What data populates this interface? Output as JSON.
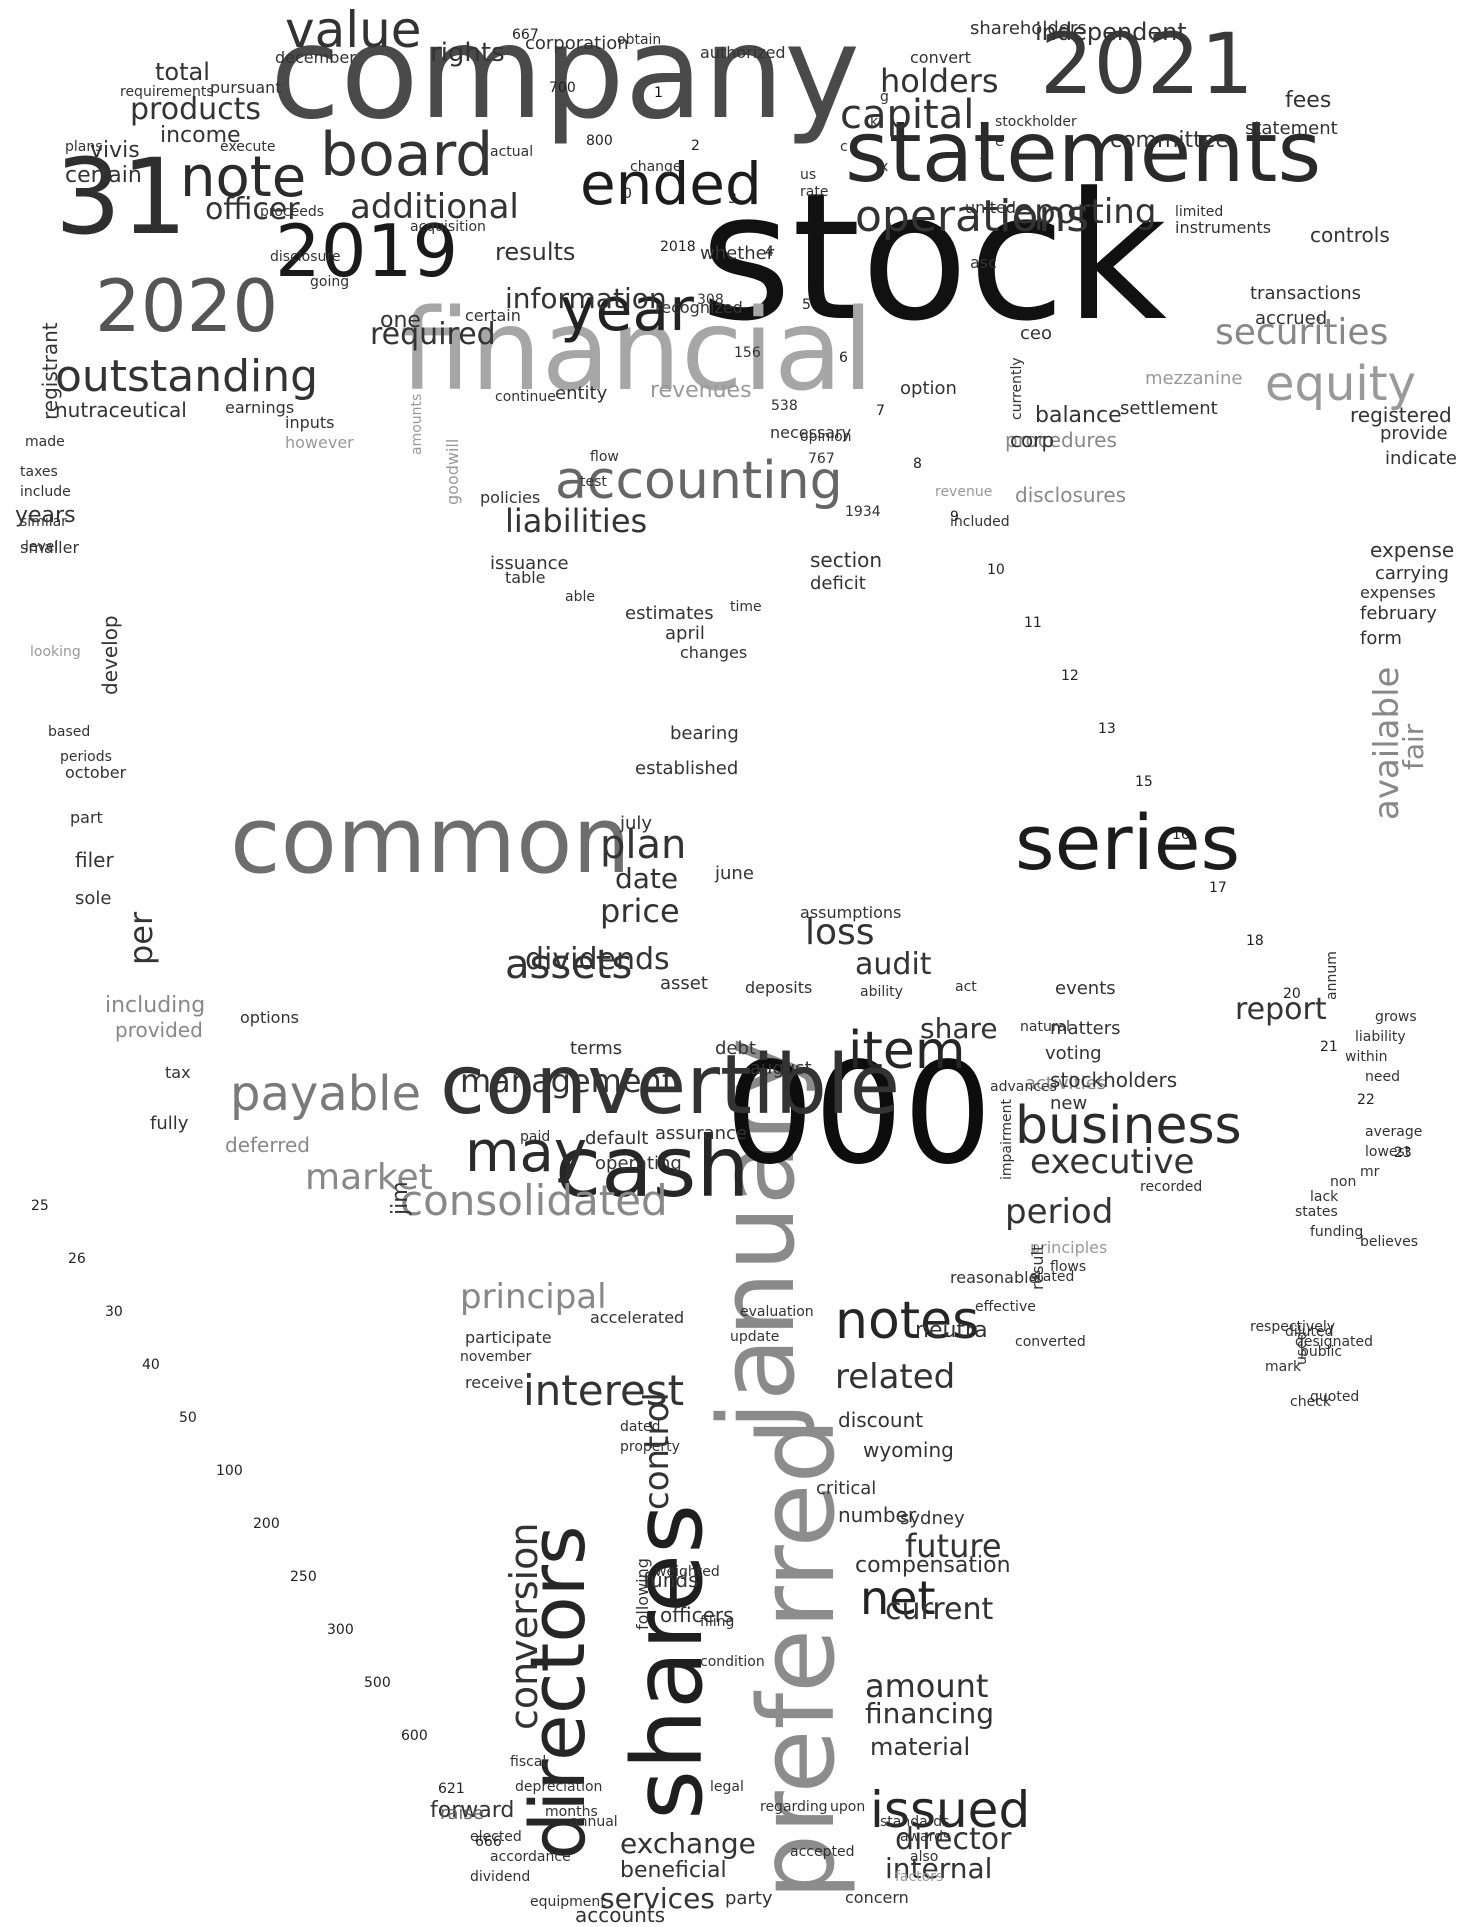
{
  "words": [
    {
      "text": "stock",
      "tone": "#111111"
    },
    {
      "text": "company",
      "tone": "#4a4a4a"
    },
    {
      "text": "statements",
      "tone": "#2a2a2a"
    },
    {
      "text": "2021",
      "tone": "#3a3a3a"
    },
    {
      "text": "financial",
      "tone": "#a6a6a6"
    },
    {
      "text": "31",
      "tone": "#2f2f2f"
    },
    {
      "text": "2019",
      "tone": "#1a1a1a"
    },
    {
      "text": "2020",
      "tone": "#555555"
    },
    {
      "text": "january",
      "tone": "#8a8a8a"
    },
    {
      "text": "preferred",
      "tone": "#8c8c8c"
    },
    {
      "text": "shares",
      "tone": "#1f1f1f"
    },
    {
      "text": "000",
      "tone": "#0d0d0d"
    },
    {
      "text": "common",
      "tone": "#6e6e6e"
    },
    {
      "text": "series",
      "tone": "#1c1c1c"
    },
    {
      "text": "convertible",
      "tone": "#333333"
    },
    {
      "text": "cash",
      "tone": "#262626"
    },
    {
      "text": "directors",
      "tone": "#262626"
    },
    {
      "text": "note",
      "tone": "#2b2b2b"
    },
    {
      "text": "board",
      "tone": "#333333"
    },
    {
      "text": "ended",
      "tone": "#1c1c1c"
    },
    {
      "text": "value",
      "tone": "#333333"
    },
    {
      "text": "year",
      "tone": "#222222"
    },
    {
      "text": "accounting",
      "tone": "#666666"
    },
    {
      "text": "equity",
      "tone": "#999999"
    },
    {
      "text": "operations",
      "tone": "#333333"
    },
    {
      "text": "outstanding",
      "tone": "#333333"
    },
    {
      "text": "item",
      "tone": "#262626"
    },
    {
      "text": "notes",
      "tone": "#262626"
    },
    {
      "text": "issued",
      "tone": "#262626"
    },
    {
      "text": "business",
      "tone": "#2b2b2b"
    },
    {
      "text": "may",
      "tone": "#2b2b2b"
    },
    {
      "text": "payable",
      "tone": "#7a7a7a"
    },
    {
      "text": "consolidated",
      "tone": "#888888"
    },
    {
      "text": "interest",
      "tone": "#333333"
    },
    {
      "text": "assets",
      "tone": "#333333"
    },
    {
      "text": "net",
      "tone": "#222222"
    },
    {
      "text": "securities",
      "tone": "#888888"
    },
    {
      "text": "reporting",
      "tone": "#333333"
    },
    {
      "text": "additional",
      "tone": "#333333"
    },
    {
      "text": "information",
      "tone": "#333333"
    },
    {
      "text": "capital",
      "tone": "#333333"
    },
    {
      "text": "holders",
      "tone": "#333333"
    },
    {
      "text": "products",
      "tone": "#333333"
    },
    {
      "text": "officer",
      "tone": "#333333"
    },
    {
      "text": "required",
      "tone": "#333333"
    },
    {
      "text": "results",
      "tone": "#333333"
    },
    {
      "text": "liabilities",
      "tone": "#333333"
    },
    {
      "text": "management",
      "tone": "#333333"
    },
    {
      "text": "principal",
      "tone": "#888888"
    },
    {
      "text": "plan",
      "tone": "#333333"
    },
    {
      "text": "price",
      "tone": "#333333"
    },
    {
      "text": "date",
      "tone": "#333333"
    },
    {
      "text": "loss",
      "tone": "#333333"
    },
    {
      "text": "audit",
      "tone": "#333333"
    },
    {
      "text": "dividends",
      "tone": "#333333"
    },
    {
      "text": "market",
      "tone": "#888888"
    },
    {
      "text": "period",
      "tone": "#333333"
    },
    {
      "text": "executive",
      "tone": "#333333"
    },
    {
      "text": "related",
      "tone": "#333333"
    },
    {
      "text": "future",
      "tone": "#333333"
    },
    {
      "text": "conversion",
      "tone": "#333333"
    },
    {
      "text": "director",
      "tone": "#333333"
    },
    {
      "text": "current",
      "tone": "#333333"
    },
    {
      "text": "amount",
      "tone": "#333333"
    },
    {
      "text": "financing",
      "tone": "#333333"
    },
    {
      "text": "control",
      "tone": "#333333"
    },
    {
      "text": "exchange",
      "tone": "#333333"
    },
    {
      "text": "internal",
      "tone": "#333333"
    },
    {
      "text": "services",
      "tone": "#333333"
    },
    {
      "text": "report",
      "tone": "#333333"
    },
    {
      "text": "share",
      "tone": "#333333"
    },
    {
      "text": "available",
      "tone": "#888888"
    },
    {
      "text": "fair",
      "tone": "#888888"
    },
    {
      "text": "rights",
      "tone": "#333333"
    },
    {
      "text": "independent",
      "tone": "#333333"
    },
    {
      "text": "committee",
      "tone": "#333333"
    },
    {
      "text": "fees",
      "tone": "#333333"
    },
    {
      "text": "statement",
      "tone": "#333333"
    },
    {
      "text": "corporation",
      "tone": "#333333"
    },
    {
      "text": "controls",
      "tone": "#333333"
    },
    {
      "text": "transactions",
      "tone": "#333333"
    },
    {
      "text": "accrued",
      "tone": "#333333"
    },
    {
      "text": "total",
      "tone": "#333333"
    },
    {
      "text": "income",
      "tone": "#333333"
    },
    {
      "text": "certain",
      "tone": "#333333"
    },
    {
      "text": "vivis",
      "tone": "#333333"
    },
    {
      "text": "nutraceutical",
      "tone": "#333333"
    },
    {
      "text": "registrant",
      "tone": "#333333"
    },
    {
      "text": "years",
      "tone": "#333333"
    },
    {
      "text": "per",
      "tone": "#333333"
    },
    {
      "text": "including",
      "tone": "#888888"
    },
    {
      "text": "provided",
      "tone": "#888888"
    },
    {
      "text": "deferred",
      "tone": "#888888"
    },
    {
      "text": "procedures",
      "tone": "#888888"
    },
    {
      "text": "disclosures",
      "tone": "#888888"
    },
    {
      "text": "activities",
      "tone": "#888888"
    },
    {
      "text": "stockholders",
      "tone": "#333333"
    },
    {
      "text": "voting",
      "tone": "#333333"
    },
    {
      "text": "matters",
      "tone": "#333333"
    },
    {
      "text": "events",
      "tone": "#333333"
    },
    {
      "text": "new",
      "tone": "#333333"
    },
    {
      "text": "neutra",
      "tone": "#333333"
    },
    {
      "text": "discount",
      "tone": "#333333"
    },
    {
      "text": "wyoming",
      "tone": "#333333"
    },
    {
      "text": "critical",
      "tone": "#333333"
    },
    {
      "text": "number",
      "tone": "#333333"
    },
    {
      "text": "compensation",
      "tone": "#333333"
    },
    {
      "text": "sydney",
      "tone": "#333333"
    },
    {
      "text": "officers",
      "tone": "#333333"
    },
    {
      "text": "funds",
      "tone": "#333333"
    },
    {
      "text": "material",
      "tone": "#333333"
    },
    {
      "text": "forward",
      "tone": "#333333"
    },
    {
      "text": "beneficial",
      "tone": "#333333"
    },
    {
      "text": "accounts",
      "tone": "#333333"
    },
    {
      "text": "party",
      "tone": "#333333"
    },
    {
      "text": "concern",
      "tone": "#333333"
    },
    {
      "text": "raise",
      "tone": "#666666"
    },
    {
      "text": "elected",
      "tone": "#333333"
    },
    {
      "text": "dividend",
      "tone": "#333333"
    },
    {
      "text": "revenues",
      "tone": "#999999"
    },
    {
      "text": "balance",
      "tone": "#333333"
    },
    {
      "text": "corp",
      "tone": "#333333"
    },
    {
      "text": "option",
      "tone": "#333333"
    },
    {
      "text": "entity",
      "tone": "#333333"
    },
    {
      "text": "continue",
      "tone": "#333333"
    },
    {
      "text": "settlement",
      "tone": "#333333"
    },
    {
      "text": "mezzanine",
      "tone": "#999999"
    },
    {
      "text": "registered",
      "tone": "#333333"
    },
    {
      "text": "provide",
      "tone": "#333333"
    },
    {
      "text": "indicate",
      "tone": "#333333"
    },
    {
      "text": "expense",
      "tone": "#333333"
    },
    {
      "text": "carrying",
      "tone": "#333333"
    },
    {
      "text": "expenses",
      "tone": "#333333"
    },
    {
      "text": "february",
      "tone": "#333333"
    },
    {
      "text": "form",
      "tone": "#333333"
    },
    {
      "text": "section",
      "tone": "#333333"
    },
    {
      "text": "deficit",
      "tone": "#333333"
    },
    {
      "text": "estimates",
      "tone": "#333333"
    },
    {
      "text": "april",
      "tone": "#333333"
    },
    {
      "text": "changes",
      "tone": "#333333"
    },
    {
      "text": "bearing",
      "tone": "#333333"
    },
    {
      "text": "established",
      "tone": "#333333"
    },
    {
      "text": "july",
      "tone": "#333333"
    },
    {
      "text": "june",
      "tone": "#333333"
    },
    {
      "text": "assumptions",
      "tone": "#333333"
    },
    {
      "text": "asset",
      "tone": "#333333"
    },
    {
      "text": "deposits",
      "tone": "#333333"
    },
    {
      "text": "terms",
      "tone": "#333333"
    },
    {
      "text": "debt",
      "tone": "#333333"
    },
    {
      "text": "august",
      "tone": "#333333"
    },
    {
      "text": "assurance",
      "tone": "#333333"
    },
    {
      "text": "operating",
      "tone": "#333333"
    },
    {
      "text": "default",
      "tone": "#333333"
    },
    {
      "text": "paid",
      "tone": "#333333"
    },
    {
      "text": "jim",
      "tone": "#333333"
    },
    {
      "text": "fully",
      "tone": "#333333"
    },
    {
      "text": "tax",
      "tone": "#333333"
    },
    {
      "text": "options",
      "tone": "#333333"
    },
    {
      "text": "filer",
      "tone": "#333333"
    },
    {
      "text": "sole",
      "tone": "#333333"
    },
    {
      "text": "part",
      "tone": "#333333"
    },
    {
      "text": "october",
      "tone": "#333333"
    },
    {
      "text": "based",
      "tone": "#333333"
    },
    {
      "text": "periods",
      "tone": "#333333"
    },
    {
      "text": "develop",
      "tone": "#333333"
    },
    {
      "text": "smaller",
      "tone": "#333333"
    },
    {
      "text": "looking",
      "tone": "#999999"
    },
    {
      "text": "plans",
      "tone": "#333333"
    },
    {
      "text": "one",
      "tone": "#333333"
    },
    {
      "text": "certain",
      "tone": "#333333"
    },
    {
      "text": "recognized",
      "tone": "#333333"
    },
    {
      "text": "whether",
      "tone": "#333333"
    },
    {
      "text": "going",
      "tone": "#333333"
    },
    {
      "text": "disclosure",
      "tone": "#333333"
    },
    {
      "text": "proceeds",
      "tone": "#333333"
    },
    {
      "text": "acquisition",
      "tone": "#333333"
    },
    {
      "text": "asc",
      "tone": "#333333"
    },
    {
      "text": "united",
      "tone": "#333333"
    },
    {
      "text": "instruments",
      "tone": "#333333"
    },
    {
      "text": "limited",
      "tone": "#333333"
    },
    {
      "text": "ceo",
      "tone": "#333333"
    },
    {
      "text": "participate",
      "tone": "#333333"
    },
    {
      "text": "november",
      "tone": "#333333"
    },
    {
      "text": "receive",
      "tone": "#333333"
    },
    {
      "text": "accelerated",
      "tone": "#333333"
    },
    {
      "text": "evaluation",
      "tone": "#333333"
    },
    {
      "text": "update",
      "tone": "#333333"
    },
    {
      "text": "december",
      "tone": "#333333"
    },
    {
      "text": "shareholders",
      "tone": "#333333"
    },
    {
      "text": "convert",
      "tone": "#333333"
    },
    {
      "text": "authorized",
      "tone": "#333333"
    },
    {
      "text": "pursuant",
      "tone": "#333333"
    },
    {
      "text": "requirements",
      "tone": "#333333"
    },
    {
      "text": "execute",
      "tone": "#333333"
    },
    {
      "text": "actual",
      "tone": "#333333"
    },
    {
      "text": "necessary",
      "tone": "#333333"
    },
    {
      "text": "opinion",
      "tone": "#333333"
    },
    {
      "text": "test",
      "tone": "#333333"
    },
    {
      "text": "flow",
      "tone": "#333333"
    },
    {
      "text": "policies",
      "tone": "#333333"
    },
    {
      "text": "issuance",
      "tone": "#333333"
    },
    {
      "text": "table",
      "tone": "#333333"
    },
    {
      "text": "able",
      "tone": "#333333"
    },
    {
      "text": "time",
      "tone": "#333333"
    },
    {
      "text": "included",
      "tone": "#333333"
    },
    {
      "text": "revenue",
      "tone": "#999999"
    },
    {
      "text": "however",
      "tone": "#999999"
    },
    {
      "text": "inputs",
      "tone": "#333333"
    },
    {
      "text": "earnings",
      "tone": "#333333"
    },
    {
      "text": "currently",
      "tone": "#333333"
    },
    {
      "text": "goodwill",
      "tone": "#999999"
    },
    {
      "text": "amounts",
      "tone": "#999999"
    },
    {
      "text": "principles",
      "tone": "#999999"
    },
    {
      "text": "stated",
      "tone": "#333333"
    },
    {
      "text": "flows",
      "tone": "#333333"
    },
    {
      "text": "result",
      "tone": "#333333"
    },
    {
      "text": "impairment",
      "tone": "#333333"
    },
    {
      "text": "advances",
      "tone": "#333333"
    },
    {
      "text": "natural",
      "tone": "#333333"
    },
    {
      "text": "act",
      "tone": "#333333"
    },
    {
      "text": "ability",
      "tone": "#333333"
    },
    {
      "text": "reasonable",
      "tone": "#333333"
    },
    {
      "text": "effective",
      "tone": "#333333"
    },
    {
      "text": "converted",
      "tone": "#333333"
    },
    {
      "text": "diluted",
      "tone": "#333333"
    },
    {
      "text": "public",
      "tone": "#333333"
    },
    {
      "text": "mark",
      "tone": "#333333"
    },
    {
      "text": "check",
      "tone": "#333333"
    },
    {
      "text": "quoted",
      "tone": "#333333"
    },
    {
      "text": "designated",
      "tone": "#333333"
    },
    {
      "text": "respectively",
      "tone": "#333333"
    },
    {
      "text": "used",
      "tone": "#333333"
    },
    {
      "text": "equipment",
      "tone": "#333333"
    },
    {
      "text": "accordance",
      "tone": "#333333"
    },
    {
      "text": "months",
      "tone": "#333333"
    },
    {
      "text": "fiscal",
      "tone": "#333333"
    },
    {
      "text": "depreciation",
      "tone": "#333333"
    },
    {
      "text": "legal",
      "tone": "#333333"
    },
    {
      "text": "regarding",
      "tone": "#333333"
    },
    {
      "text": "upon",
      "tone": "#333333"
    },
    {
      "text": "standards",
      "tone": "#333333"
    },
    {
      "text": "awards",
      "tone": "#333333"
    },
    {
      "text": "also",
      "tone": "#333333"
    },
    {
      "text": "factors",
      "tone": "#999999"
    },
    {
      "text": "accepted",
      "tone": "#333333"
    },
    {
      "text": "annual",
      "tone": "#333333"
    },
    {
      "text": "following",
      "tone": "#333333"
    },
    {
      "text": "filing",
      "tone": "#333333"
    },
    {
      "text": "condition",
      "tone": "#333333"
    },
    {
      "text": "weighted",
      "tone": "#333333"
    },
    {
      "text": "dated",
      "tone": "#333333"
    },
    {
      "text": "property",
      "tone": "#333333"
    },
    {
      "text": "liability",
      "tone": "#333333"
    },
    {
      "text": "grows",
      "tone": "#333333"
    },
    {
      "text": "annum",
      "tone": "#333333"
    },
    {
      "text": "within",
      "tone": "#333333"
    },
    {
      "text": "need",
      "tone": "#333333"
    },
    {
      "text": "average",
      "tone": "#333333"
    },
    {
      "text": "lowest",
      "tone": "#333333"
    },
    {
      "text": "mr",
      "tone": "#333333"
    },
    {
      "text": "non",
      "tone": "#333333"
    },
    {
      "text": "lack",
      "tone": "#333333"
    },
    {
      "text": "states",
      "tone": "#333333"
    },
    {
      "text": "funding",
      "tone": "#333333"
    },
    {
      "text": "recorded",
      "tone": "#333333"
    },
    {
      "text": "believes",
      "tone": "#333333"
    },
    {
      "text": "stockholder",
      "tone": "#333333"
    },
    {
      "text": "e",
      "tone": "#333333"
    },
    {
      "text": "f",
      "tone": "#333333"
    },
    {
      "text": "g",
      "tone": "#333333"
    },
    {
      "text": "k",
      "tone": "#333333"
    },
    {
      "text": "c",
      "tone": "#333333"
    },
    {
      "text": "x",
      "tone": "#333333"
    },
    {
      "text": "us",
      "tone": "#333333"
    },
    {
      "text": "rate",
      "tone": "#333333"
    },
    {
      "text": "change",
      "tone": "#333333"
    },
    {
      "text": "made",
      "tone": "#333333"
    },
    {
      "text": "taxes",
      "tone": "#333333"
    },
    {
      "text": "include",
      "tone": "#333333"
    },
    {
      "text": "similar",
      "tone": "#333333"
    },
    {
      "text": "level",
      "tone": "#333333"
    },
    {
      "text": "obtain",
      "tone": "#333333"
    },
    {
      "text": "1",
      "tone": "#111111"
    },
    {
      "text": "2",
      "tone": "#222222"
    },
    {
      "text": "3",
      "tone": "#222222"
    },
    {
      "text": "4",
      "tone": "#222222"
    },
    {
      "text": "5",
      "tone": "#222222"
    },
    {
      "text": "6",
      "tone": "#222222"
    },
    {
      "text": "7",
      "tone": "#222222"
    },
    {
      "text": "8",
      "tone": "#222222"
    },
    {
      "text": "9",
      "tone": "#222222"
    },
    {
      "text": "10",
      "tone": "#222222"
    },
    {
      "text": "11",
      "tone": "#222222"
    },
    {
      "text": "12",
      "tone": "#222222"
    },
    {
      "text": "13",
      "tone": "#222222"
    },
    {
      "text": "15",
      "tone": "#222222"
    },
    {
      "text": "16",
      "tone": "#222222"
    },
    {
      "text": "17",
      "tone": "#222222"
    },
    {
      "text": "18",
      "tone": "#222222"
    },
    {
      "text": "20",
      "tone": "#222222"
    },
    {
      "text": "21",
      "tone": "#222222"
    },
    {
      "text": "22",
      "tone": "#222222"
    },
    {
      "text": "23",
      "tone": "#222222"
    },
    {
      "text": "25",
      "tone": "#222222"
    },
    {
      "text": "26",
      "tone": "#222222"
    },
    {
      "text": "30",
      "tone": "#222222"
    },
    {
      "text": "40",
      "tone": "#222222"
    },
    {
      "text": "50",
      "tone": "#222222"
    },
    {
      "text": "100",
      "tone": "#222222"
    },
    {
      "text": "200",
      "tone": "#222222"
    },
    {
      "text": "250",
      "tone": "#222222"
    },
    {
      "text": "300",
      "tone": "#222222"
    },
    {
      "text": "500",
      "tone": "#222222"
    },
    {
      "text": "600",
      "tone": "#222222"
    },
    {
      "text": "621",
      "tone": "#222222"
    },
    {
      "text": "666",
      "tone": "#222222"
    },
    {
      "text": "667",
      "tone": "#222222"
    },
    {
      "text": "700",
      "tone": "#222222"
    },
    {
      "text": "800",
      "tone": "#222222"
    },
    {
      "text": "0",
      "tone": "#222222"
    },
    {
      "text": "2018",
      "tone": "#222222"
    },
    {
      "text": "308",
      "tone": "#333333"
    },
    {
      "text": "156",
      "tone": "#333333"
    },
    {
      "text": "538",
      "tone": "#333333"
    },
    {
      "text": "767",
      "tone": "#333333"
    },
    {
      "text": "1934",
      "tone": "#333333"
    }
  ]
}
